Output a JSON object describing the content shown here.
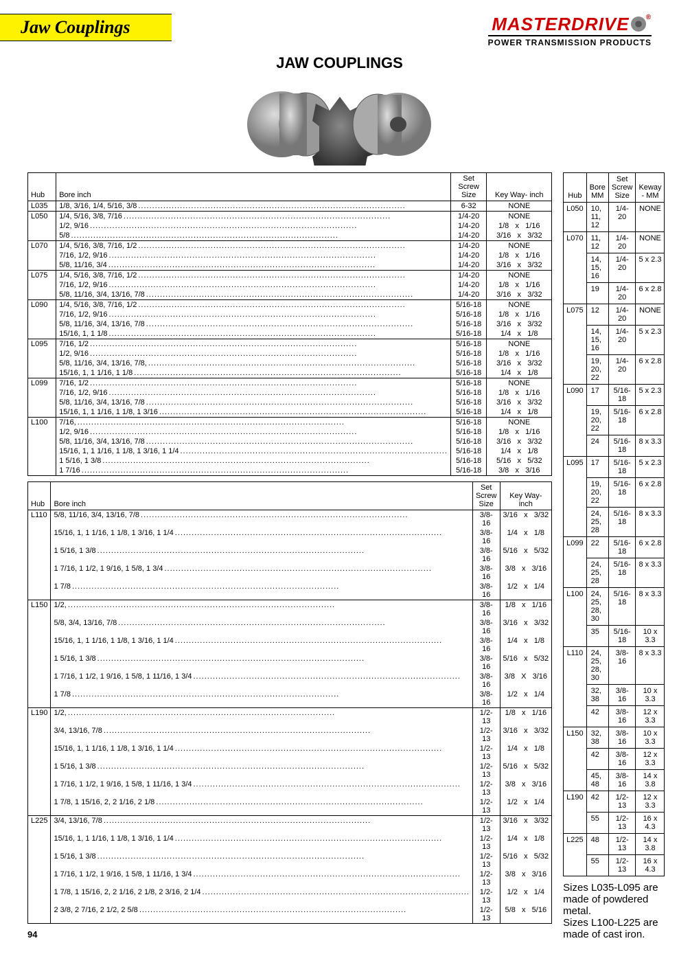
{
  "header": {
    "section_title": "Jaw Couplings",
    "brand": "MASTERDRIVE",
    "tagline": "POWER TRANSMISSION PRODUCTS"
  },
  "main_title": "JAW COUPLINGS",
  "table_headers": {
    "hub": "Hub",
    "bore_in": "Bore inch",
    "screw": "Set\nScrew\nSize",
    "keyway_in": "Key Way- inch",
    "bore_mm": "Bore MM",
    "keyway_mm": "Keway - MM"
  },
  "inch_table_1": [
    {
      "hub": "L035",
      "rows": [
        {
          "bore": "1/8, 3/16, 1/4, 5/16, 3/8",
          "screw": "6-32",
          "key": "NONE"
        }
      ]
    },
    {
      "hub": "L050",
      "rows": [
        {
          "bore": "1/4, 5/16, 3/8, 7/16",
          "screw": "1/4-20",
          "key": "NONE"
        },
        {
          "bore": "1/2, 9/16",
          "screw": "1/4-20",
          "key": "1/8   x   1/16"
        },
        {
          "bore": "5/8",
          "screw": "1/4-20",
          "key": "3/16   x   3/32"
        }
      ]
    },
    {
      "hub": "L070",
      "rows": [
        {
          "bore": "1/4, 5/16, 3/8, 7/16, 1/2",
          "screw": "1/4-20",
          "key": "NONE"
        },
        {
          "bore": "7/16, 1/2, 9/16",
          "screw": "1/4-20",
          "key": "1/8   x   1/16"
        },
        {
          "bore": "5/8, 11/16, 3/4",
          "screw": "1/4-20",
          "key": "3/16   x   3/32"
        }
      ]
    },
    {
      "hub": "L075",
      "rows": [
        {
          "bore": "1/4, 5/16, 3/8, 7/16, 1/2",
          "screw": "1/4-20",
          "key": "NONE"
        },
        {
          "bore": "7/16, 1/2, 9/16",
          "screw": "1/4-20",
          "key": "1/8   x   1/16"
        },
        {
          "bore": "5/8, 11/16, 3/4, 13/16, 7/8",
          "screw": "1/4-20",
          "key": "3/16   x   3/32"
        }
      ]
    },
    {
      "hub": "L090",
      "rows": [
        {
          "bore": "1/4, 5/16, 3/8, 7/16, 1/2",
          "screw": "5/16-18",
          "key": "NONE"
        },
        {
          "bore": "7/16, 1/2, 9/16",
          "screw": "5/16-18",
          "key": "1/8   x   1/16"
        },
        {
          "bore": "5/8, 11/16, 3/4, 13/16, 7/8",
          "screw": "5/16-18",
          "key": "3/16   x   3/32"
        },
        {
          "bore": "15/16, 1, 1 1/8",
          "screw": "5/16-18",
          "key": "1/4   x   1/8"
        }
      ]
    },
    {
      "hub": "L095",
      "rows": [
        {
          "bore": "7/16, 1/2",
          "screw": "5/16-18",
          "key": "NONE"
        },
        {
          "bore": "1/2, 9/16",
          "screw": "5/16-18",
          "key": "1/8   x   1/16"
        },
        {
          "bore": "5/8, 11/16, 3/4, 13/16, 7/8,",
          "screw": "5/16-18",
          "key": "3/16   x   3/32"
        },
        {
          "bore": "15/16, 1, 1 1/16, 1 1/8",
          "screw": "5/16-18",
          "key": "1/4   x   1/8"
        }
      ]
    },
    {
      "hub": "L099",
      "rows": [
        {
          "bore": "7/16, 1/2",
          "screw": "5/16-18",
          "key": "NONE"
        },
        {
          "bore": "7/16, 1/2, 9/16",
          "screw": "5/16-18",
          "key": "1/8   x   1/16"
        },
        {
          "bore": "5/8, 11/16, 3/4, 13/16, 7/8",
          "screw": "5/16-18",
          "key": "3/16   x   3/32"
        },
        {
          "bore": "15/16, 1, 1 1/16, 1 1/8, 1 3/16",
          "screw": "5/16-18",
          "key": "1/4   x   1/8"
        }
      ]
    },
    {
      "hub": "L100",
      "rows": [
        {
          "bore": "7/16,",
          "screw": "5/16-18",
          "key": "NONE"
        },
        {
          "bore": "1/2, 9/16",
          "screw": "5/16-18",
          "key": "1/8   x   1/16"
        },
        {
          "bore": "5/8, 11/16, 3/4, 13/16, 7/8",
          "screw": "5/16-18",
          "key": "3/16   x   3/32"
        },
        {
          "bore": "15/16, 1, 1 1/16, 1 1/8, 1 3/16, 1 1/4",
          "screw": "5/16-18",
          "key": "1/4   x   1/8"
        },
        {
          "bore": "1 5/16, 1 3/8",
          "screw": "5/16-18",
          "key": "5/16   x   5/32"
        },
        {
          "bore": "1 7/16",
          "screw": "5/16-18",
          "key": "3/8   x   3/16"
        }
      ]
    }
  ],
  "inch_table_2": [
    {
      "hub": "L110",
      "rows": [
        {
          "bore": "5/8, 11/16, 3/4, 13/16, 7/8",
          "screw": "3/8-16",
          "key": "3/16   x   3/32"
        },
        {
          "bore": "15/16, 1, 1 1/16, 1 1/8, 1 3/16, 1 1/4",
          "screw": "3/8-16",
          "key": "1/4   x   1/8"
        },
        {
          "bore": "1 5/16, 1 3/8",
          "screw": "3/8-16",
          "key": "5/16   x   5/32"
        },
        {
          "bore": "1 7/16, 1 1/2, 1 9/16, 1 5/8, 1 3/4",
          "screw": "3/8-16",
          "key": "3/8   x   3/16"
        },
        {
          "bore": "1 7/8",
          "screw": "3/8-16",
          "key": "1/2   x   1/4"
        }
      ]
    },
    {
      "hub": "L150",
      "rows": [
        {
          "bore": "1/2,",
          "screw": "3/8-16",
          "key": "1/8   x   1/16"
        },
        {
          "bore": "5/8, 3/4, 13/16, 7/8",
          "screw": "3/8-16",
          "key": "3/16   x   3/32"
        },
        {
          "bore": "15/16, 1, 1 1/16, 1 1/8, 1 3/16, 1 1/4",
          "screw": "3/8-16",
          "key": "1/4   x   1/8"
        },
        {
          "bore": "1 5/16, 1 3/8",
          "screw": "3/8-16",
          "key": "5/16   x   5/32"
        },
        {
          "bore": "1 7/16, 1 1/2, 1 9/16, 1 5/8, 1 11/16, 1 3/4",
          "screw": "3/8-16",
          "key": "3/8   X   3/16"
        },
        {
          "bore": "1 7/8",
          "screw": "3/8-16",
          "key": "1/2   x   1/4"
        }
      ]
    },
    {
      "hub": "L190",
      "rows": [
        {
          "bore": "1/2,",
          "screw": "1/2-13",
          "key": "1/8   x   1/16"
        },
        {
          "bore": "3/4, 13/16, 7/8",
          "screw": "1/2-13",
          "key": "3/16   x   3/32"
        },
        {
          "bore": "15/16, 1, 1 1/16, 1 1/8, 1 3/16, 1 1/4",
          "screw": "1/2-13",
          "key": "1/4   x   1/8"
        },
        {
          "bore": "1 5/16, 1 3/8",
          "screw": "1/2-13",
          "key": "5/16   x   5/32"
        },
        {
          "bore": "1 7/16, 1 1/2, 1 9/16, 1 5/8, 1 11/16, 1 3/4",
          "screw": "1/2-13",
          "key": "3/8   x   3/16"
        },
        {
          "bore": "1 7/8, 1 15/16, 2, 2 1/16, 2 1/8",
          "screw": "1/2-13",
          "key": "1/2   x   1/4"
        }
      ]
    },
    {
      "hub": "L225",
      "rows": [
        {
          "bore": "3/4, 13/16, 7/8",
          "screw": "1/2-13",
          "key": "3/16   x   3/32"
        },
        {
          "bore": "15/16, 1, 1 1/16, 1 1/8, 1 3/16, 1 1/4",
          "screw": "1/2-13",
          "key": "1/4   x   1/8"
        },
        {
          "bore": "1 5/16, 1 3/8",
          "screw": "1/2-13",
          "key": "5/16   x   5/32"
        },
        {
          "bore": "1 7/16, 1 1/2, 1 9/16, 1 5/8, 1 11/16, 1 3/4",
          "screw": "1/2-13",
          "key": "3/8   x   3/16"
        },
        {
          "bore": "1 7/8, 1 15/16, 2, 2 1/16, 2 1/8, 2 3/16, 2 1/4",
          "screw": "1/2-13",
          "key": "1/2   x   1/4"
        },
        {
          "bore": "2 3/8, 2 7/16, 2 1/2, 2 5/8",
          "screw": "1/2-13",
          "key": "5/8   x   5/16"
        }
      ]
    }
  ],
  "mm_table": [
    {
      "hub": "L050",
      "rows": [
        {
          "bore": "10, 11, 12",
          "screw": "1/4-20",
          "key": "NONE"
        }
      ]
    },
    {
      "hub": "L070",
      "rows": [
        {
          "bore": "11, 12",
          "screw": "1/4-20",
          "key": "NONE"
        },
        {
          "bore": "14, 15, 16",
          "screw": "1/4-20",
          "key": "5 x 2.3"
        },
        {
          "bore": "19",
          "screw": "1/4-20",
          "key": "6 x 2.8"
        }
      ]
    },
    {
      "hub": "L075",
      "rows": [
        {
          "bore": "12",
          "screw": "1/4-20",
          "key": "NONE"
        },
        {
          "bore": "14, 15, 16",
          "screw": "1/4-20",
          "key": "5 x 2.3"
        },
        {
          "bore": "19, 20, 22",
          "screw": "1/4-20",
          "key": "6 x 2.8"
        }
      ]
    },
    {
      "hub": "L090",
      "rows": [
        {
          "bore": "17",
          "screw": "5/16-18",
          "key": "5 x 2.3"
        },
        {
          "bore": "19, 20, 22",
          "screw": "5/16-18",
          "key": "6 x 2.8"
        },
        {
          "bore": "24",
          "screw": "5/16-18",
          "key": "8 x 3.3"
        }
      ]
    },
    {
      "hub": "L095",
      "rows": [
        {
          "bore": "17",
          "screw": "5/16-18",
          "key": "5 x 2.3"
        },
        {
          "bore": "19, 20, 22",
          "screw": "5/16-18",
          "key": "6 x 2.8"
        },
        {
          "bore": "24, 25, 28",
          "screw": "5/16-18",
          "key": "8 x 3.3"
        }
      ]
    },
    {
      "hub": "L099",
      "rows": [
        {
          "bore": "22",
          "screw": "5/16-18",
          "key": "6 x 2.8"
        },
        {
          "bore": "24, 25, 28",
          "screw": "5/16-18",
          "key": "8 x 3.3"
        }
      ]
    },
    {
      "hub": "L100",
      "rows": [
        {
          "bore": "24, 25, 28, 30",
          "screw": "5/16-18",
          "key": "8 x 3.3"
        },
        {
          "bore": "35",
          "screw": "5/16-18",
          "key": "10 x 3.3"
        }
      ]
    },
    {
      "hub": "L110",
      "rows": [
        {
          "bore": "24, 25, 28, 30",
          "screw": "3/8-16",
          "key": "8 x 3.3"
        },
        {
          "bore": "32, 38",
          "screw": "3/8-16",
          "key": "10 x 3.3"
        },
        {
          "bore": "42",
          "screw": "3/8-16",
          "key": "12 x 3.3"
        }
      ]
    },
    {
      "hub": "L150",
      "rows": [
        {
          "bore": "32, 38",
          "screw": "3/8-16",
          "key": "10 x 3.3"
        },
        {
          "bore": "42",
          "screw": "3/8-16",
          "key": "12 x 3.3"
        },
        {
          "bore": "45, 48",
          "screw": "3/8-16",
          "key": "14 x 3.8"
        }
      ]
    },
    {
      "hub": "L190",
      "rows": [
        {
          "bore": "42",
          "screw": "1/2-13",
          "key": "12 x 3.3"
        },
        {
          "bore": "55",
          "screw": "1/2-13",
          "key": "16 x 4.3"
        }
      ]
    },
    {
      "hub": "L225",
      "rows": [
        {
          "bore": "48",
          "screw": "1/2-13",
          "key": "14 x 3.8"
        },
        {
          "bore": "55",
          "screw": "1/2-13",
          "key": "16 x 4.3"
        }
      ]
    }
  ],
  "notes": {
    "line1": "Sizes L035-L095 are made of powdered metal.",
    "line2": "Sizes L100-L225 are made of cast iron."
  },
  "page_number": "94"
}
